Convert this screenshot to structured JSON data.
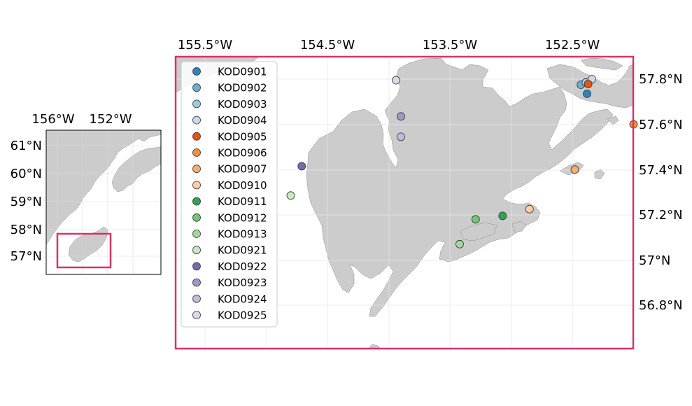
{
  "inset_map": {
    "x_ticks": [
      "156°W",
      "152°W"
    ],
    "y_ticks": [
      "61°N",
      "60°N",
      "59°N",
      "58°N",
      "57°N"
    ],
    "highlight_color": "#d6336c"
  },
  "main_map": {
    "x_ticks": [
      "155.5°W",
      "154.5°W",
      "153.5°W",
      "152.5°W"
    ],
    "y_ticks": [
      "57.8°N",
      "57.6°N",
      "57.4°N",
      "57.2°N",
      "57°N",
      "56.8°N"
    ],
    "frame_color": "#d6336c",
    "land_color": "#cccccc"
  },
  "legend": {
    "location": "upper-left",
    "entries": [
      {
        "label": "KOD0901",
        "color": "#3182bd"
      },
      {
        "label": "KOD0902",
        "color": "#6baed6"
      },
      {
        "label": "KOD0903",
        "color": "#9ecae1"
      },
      {
        "label": "KOD0904",
        "color": "#c6dbef"
      },
      {
        "label": "KOD0905",
        "color": "#e6550d"
      },
      {
        "label": "KOD0906",
        "color": "#fd8d3c"
      },
      {
        "label": "KOD0907",
        "color": "#fdae6b"
      },
      {
        "label": "KOD0910",
        "color": "#fdd0a2"
      },
      {
        "label": "KOD0911",
        "color": "#31a354"
      },
      {
        "label": "KOD0912",
        "color": "#74c476"
      },
      {
        "label": "KOD0913",
        "color": "#a1d99b"
      },
      {
        "label": "KOD0921",
        "color": "#c7e9c0"
      },
      {
        "label": "KOD0922",
        "color": "#756bb1"
      },
      {
        "label": "KOD0923",
        "color": "#9e9ac8"
      },
      {
        "label": "KOD0924",
        "color": "#bcbddc"
      },
      {
        "label": "KOD0925",
        "color": "#dadaeb"
      }
    ]
  },
  "sites": [
    {
      "label": "KOD0901",
      "lon": -152.38,
      "lat": 57.735
    },
    {
      "label": "KOD0902",
      "lon": -152.43,
      "lat": 57.775
    },
    {
      "label": "KOD0903",
      "lon": -152.39,
      "lat": 57.785
    },
    {
      "label": "KOD0904",
      "lon": -152.34,
      "lat": 57.8
    },
    {
      "label": "KOD0905",
      "lon": -152.37,
      "lat": 57.778
    },
    {
      "label": "KOD0906",
      "lon": -152.0,
      "lat": 57.6
    },
    {
      "label": "KOD0907",
      "lon": -152.48,
      "lat": 57.4
    },
    {
      "label": "KOD0910",
      "lon": -152.85,
      "lat": 57.225
    },
    {
      "label": "KOD0911",
      "lon": -153.07,
      "lat": 57.195
    },
    {
      "label": "KOD0912",
      "lon": -153.29,
      "lat": 57.18
    },
    {
      "label": "KOD0913",
      "lon": -153.42,
      "lat": 57.07
    },
    {
      "label": "KOD0921",
      "lon": -154.8,
      "lat": 57.285
    },
    {
      "label": "KOD0922",
      "lon": -154.71,
      "lat": 57.415
    },
    {
      "label": "KOD0923",
      "lon": -153.9,
      "lat": 57.635
    },
    {
      "label": "KOD0924",
      "lon": -153.9,
      "lat": 57.545
    },
    {
      "label": "KOD0925",
      "lon": -153.94,
      "lat": 57.795
    }
  ]
}
